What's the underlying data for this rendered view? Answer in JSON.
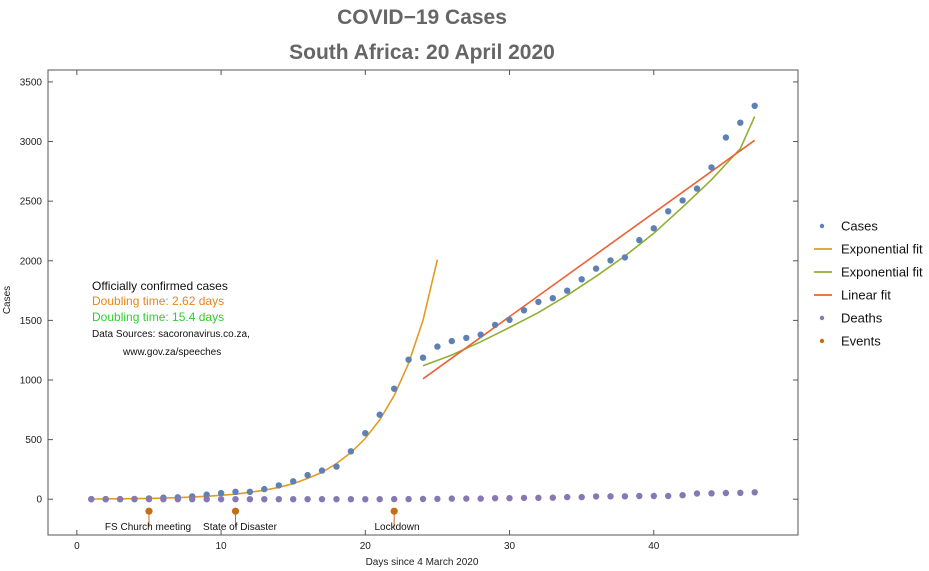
{
  "chart_data": {
    "type": "scatter",
    "title": "COVID−19 Cases",
    "subtitle": "South Africa: 20 April 2020",
    "xlabel": "Days since 4 March 2020",
    "ylabel": "Cases",
    "xlim": [
      -2,
      50
    ],
    "ylim": [
      -300,
      3600
    ],
    "xticks": [
      0,
      10,
      20,
      30,
      40
    ],
    "yticks": [
      0,
      500,
      1000,
      1500,
      2000,
      2500,
      3000,
      3500
    ],
    "grid": false,
    "legend_position": "right",
    "series": [
      {
        "name": "Cases",
        "kind": "points",
        "color": "#5E81B5",
        "points": [
          [
            1,
            1
          ],
          [
            2,
            1
          ],
          [
            3,
            1
          ],
          [
            4,
            3
          ],
          [
            5,
            7
          ],
          [
            6,
            13
          ],
          [
            7,
            16
          ],
          [
            8,
            24
          ],
          [
            9,
            38
          ],
          [
            10,
            51
          ],
          [
            11,
            62
          ],
          [
            12,
            62
          ],
          [
            13,
            85
          ],
          [
            14,
            116
          ],
          [
            15,
            150
          ],
          [
            16,
            202
          ],
          [
            17,
            240
          ],
          [
            18,
            274
          ],
          [
            19,
            402
          ],
          [
            20,
            554
          ],
          [
            21,
            709
          ],
          [
            22,
            927
          ],
          [
            23,
            1170
          ],
          [
            24,
            1187
          ],
          [
            25,
            1280
          ],
          [
            26,
            1326
          ],
          [
            27,
            1353
          ],
          [
            28,
            1380
          ],
          [
            29,
            1462
          ],
          [
            30,
            1505
          ],
          [
            31,
            1585
          ],
          [
            32,
            1655
          ],
          [
            33,
            1686
          ],
          [
            34,
            1749
          ],
          [
            35,
            1845
          ],
          [
            36,
            1934
          ],
          [
            37,
            2003
          ],
          [
            38,
            2028
          ],
          [
            39,
            2173
          ],
          [
            40,
            2272
          ],
          [
            41,
            2415
          ],
          [
            42,
            2506
          ],
          [
            43,
            2605
          ],
          [
            44,
            2783
          ],
          [
            45,
            3034
          ],
          [
            46,
            3158
          ],
          [
            47,
            3300
          ]
        ]
      },
      {
        "name": "Exponential fit",
        "kind": "line",
        "color": "#E19C24",
        "points": [
          [
            1,
            2
          ],
          [
            3,
            4
          ],
          [
            5,
            7
          ],
          [
            7,
            13
          ],
          [
            9,
            25
          ],
          [
            11,
            42
          ],
          [
            13,
            75
          ],
          [
            14,
            100
          ],
          [
            15,
            130
          ],
          [
            16,
            175
          ],
          [
            17,
            225
          ],
          [
            18,
            300
          ],
          [
            19,
            390
          ],
          [
            20,
            510
          ],
          [
            21,
            665
          ],
          [
            22,
            870
          ],
          [
            23,
            1140
          ],
          [
            24,
            1500
          ],
          [
            25,
            2010
          ]
        ]
      },
      {
        "name": "Exponential fit",
        "kind": "line",
        "color": "#8FB032",
        "points": [
          [
            24,
            1120
          ],
          [
            26,
            1210
          ],
          [
            28,
            1320
          ],
          [
            30,
            1440
          ],
          [
            32,
            1565
          ],
          [
            34,
            1710
          ],
          [
            36,
            1870
          ],
          [
            38,
            2040
          ],
          [
            40,
            2230
          ],
          [
            42,
            2450
          ],
          [
            44,
            2680
          ],
          [
            46,
            2940
          ],
          [
            47,
            3210
          ]
        ]
      },
      {
        "name": "Linear fit",
        "kind": "line",
        "color": "#EB6235",
        "points": [
          [
            24,
            1010
          ],
          [
            47,
            3010
          ]
        ]
      },
      {
        "name": "Deaths",
        "kind": "points",
        "color": "#8778B3",
        "points": [
          [
            1,
            0
          ],
          [
            2,
            0
          ],
          [
            3,
            0
          ],
          [
            4,
            0
          ],
          [
            5,
            0
          ],
          [
            6,
            0
          ],
          [
            7,
            0
          ],
          [
            8,
            0
          ],
          [
            9,
            0
          ],
          [
            10,
            0
          ],
          [
            11,
            0
          ],
          [
            12,
            0
          ],
          [
            13,
            0
          ],
          [
            14,
            0
          ],
          [
            15,
            0
          ],
          [
            16,
            0
          ],
          [
            17,
            0
          ],
          [
            18,
            0
          ],
          [
            19,
            0
          ],
          [
            20,
            0
          ],
          [
            21,
            0
          ],
          [
            22,
            1
          ],
          [
            23,
            1
          ],
          [
            24,
            2
          ],
          [
            25,
            3
          ],
          [
            26,
            5
          ],
          [
            27,
            5
          ],
          [
            28,
            5
          ],
          [
            29,
            9
          ],
          [
            30,
            9
          ],
          [
            31,
            11
          ],
          [
            32,
            12
          ],
          [
            33,
            13
          ],
          [
            34,
            18
          ],
          [
            35,
            18
          ],
          [
            36,
            24
          ],
          [
            37,
            25
          ],
          [
            38,
            25
          ],
          [
            39,
            27
          ],
          [
            40,
            27
          ],
          [
            41,
            27
          ],
          [
            42,
            34
          ],
          [
            43,
            48
          ],
          [
            44,
            50
          ],
          [
            45,
            52
          ],
          [
            46,
            54
          ],
          [
            47,
            58
          ]
        ]
      },
      {
        "name": "Events",
        "kind": "points",
        "color": "#C56E1A",
        "points": [
          [
            5,
            -100
          ],
          [
            11,
            -100
          ],
          [
            22,
            -100
          ]
        ]
      }
    ],
    "event_labels": [
      {
        "x": 5,
        "text": "FS Church meeting"
      },
      {
        "x": 11,
        "text": "State of Disaster"
      },
      {
        "x": 22,
        "text": "Lockdown"
      }
    ],
    "annotations": [
      {
        "text": "Officially confirmed cases",
        "color": "#111111"
      },
      {
        "text": "Doubling time: 2.62 days",
        "color": "#E8851C"
      },
      {
        "text": "Doubling time: 15.4 days",
        "color": "#33CC33"
      },
      {
        "text": "Data Sources: sacoronavirus.co.za,",
        "color": "#111111"
      },
      {
        "text": "www.gov.za/speeches",
        "color": "#111111"
      }
    ]
  }
}
